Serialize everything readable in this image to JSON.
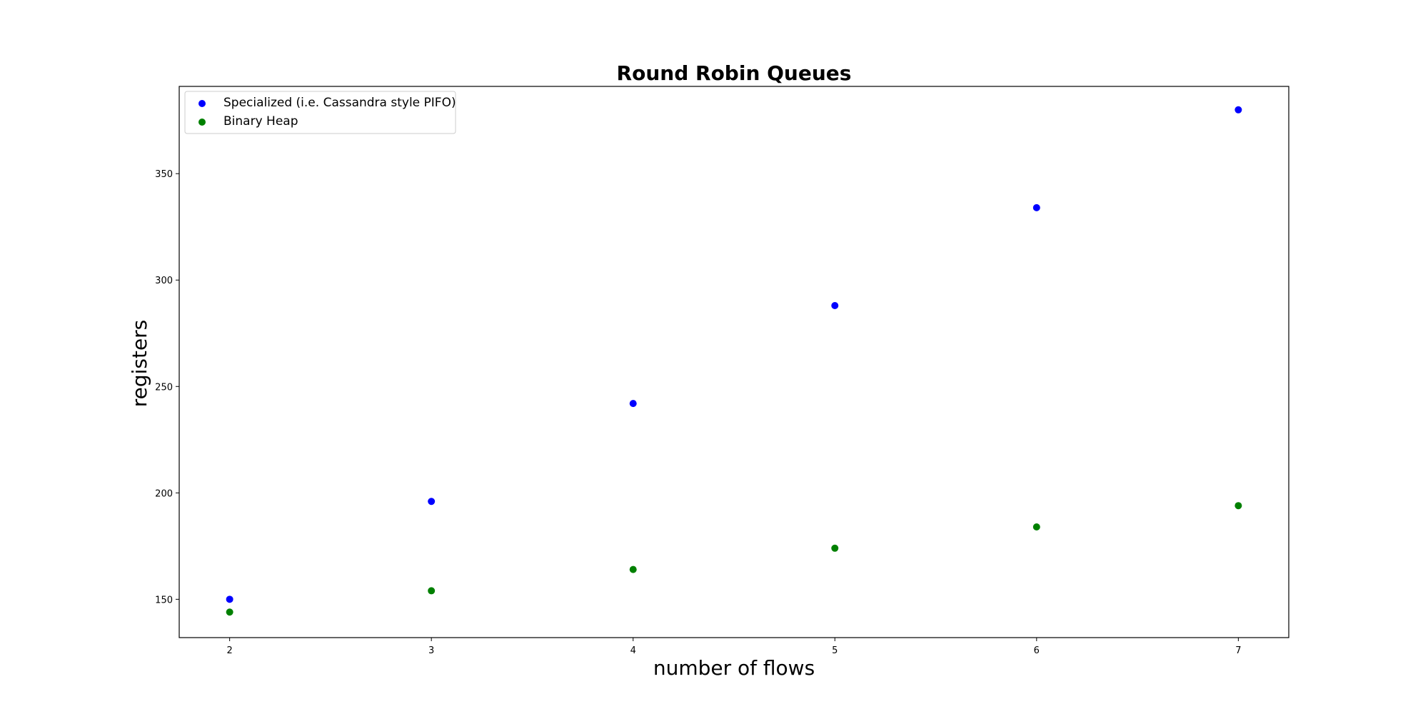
{
  "chart_data": {
    "type": "scatter",
    "title": "Round Robin Queues",
    "xlabel": "number of flows",
    "ylabel": "registers",
    "xlim": [
      1.75,
      7.25
    ],
    "ylim": [
      132,
      391
    ],
    "xticks": [
      2,
      3,
      4,
      5,
      6,
      7
    ],
    "yticks": [
      150,
      200,
      250,
      300,
      350
    ],
    "grid": false,
    "legend_position": "upper-left",
    "series": [
      {
        "name": "Specialized (i.e. Cassandra style PIFO)",
        "color": "#0000ff",
        "x": [
          2,
          3,
          4,
          5,
          6,
          7
        ],
        "y": [
          150,
          196,
          242,
          288,
          334,
          380
        ]
      },
      {
        "name": "Binary Heap",
        "color": "#008000",
        "x": [
          2,
          3,
          4,
          5,
          6,
          7
        ],
        "y": [
          144,
          154,
          164,
          174,
          184,
          194
        ]
      }
    ]
  }
}
